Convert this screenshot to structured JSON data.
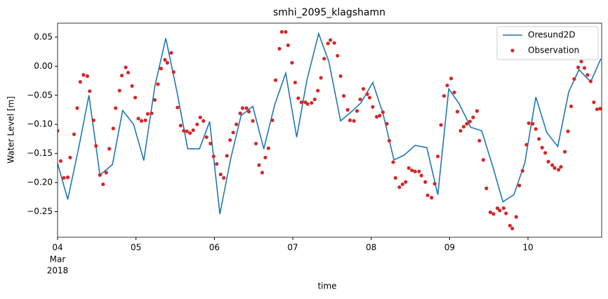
{
  "chart_data": {
    "type": "line",
    "title": "smhi_2095_klagshamn",
    "xlabel": "time",
    "ylabel": "Water Level [m]",
    "xlim": [
      0,
      6.94
    ],
    "ylim": [
      -0.294,
      0.074
    ],
    "xticks": [
      {
        "value": 0,
        "label": "04"
      },
      {
        "value": 1,
        "label": "05"
      },
      {
        "value": 2,
        "label": "06"
      },
      {
        "value": 3,
        "label": "07"
      },
      {
        "value": 4,
        "label": "08"
      },
      {
        "value": 5,
        "label": "09"
      },
      {
        "value": 6,
        "label": "10"
      }
    ],
    "xtick_sublabels": [
      "Mar",
      "2018"
    ],
    "yticks": [
      0.05,
      {
        "value": 0,
        "label": "0.00"
      },
      {
        "value": -0.05,
        "label": "−0.05"
      },
      {
        "value": -0.1,
        "label": "−0.10"
      },
      {
        "value": -0.15,
        "label": "−0.15"
      },
      {
        "value": -0.2,
        "label": "−0.20"
      },
      {
        "value": -0.25,
        "label": "−0.25"
      }
    ],
    "legend": "upper right",
    "series": [
      {
        "name": "Oresund2D",
        "color": "#1f77b4",
        "type": "line",
        "x": [
          0,
          0.13,
          0.27,
          0.4,
          0.54,
          0.7,
          0.83,
          0.97,
          1.1,
          1.24,
          1.38,
          1.52,
          1.66,
          1.81,
          1.94,
          2.07,
          2.21,
          2.34,
          2.49,
          2.63,
          2.77,
          2.91,
          3.05,
          3.18,
          3.33,
          3.46,
          3.61,
          3.75,
          3.87,
          4.02,
          4.15,
          4.29,
          4.42,
          4.56,
          4.71,
          4.85,
          4.99,
          5.12,
          5.27,
          5.41,
          5.55,
          5.68,
          5.82,
          5.96,
          6.1,
          6.24,
          6.38,
          6.52,
          6.65,
          6.8,
          6.93
        ],
        "values": [
          -0.167,
          -0.229,
          -0.14,
          -0.05,
          -0.187,
          -0.169,
          -0.076,
          -0.1,
          -0.162,
          -0.035,
          0.048,
          -0.042,
          -0.142,
          -0.142,
          -0.095,
          -0.254,
          -0.158,
          -0.085,
          -0.069,
          -0.142,
          -0.066,
          -0.012,
          -0.122,
          -0.024,
          0.056,
          0.008,
          -0.094,
          -0.078,
          -0.063,
          -0.028,
          -0.081,
          -0.161,
          -0.153,
          -0.136,
          -0.14,
          -0.221,
          -0.039,
          -0.064,
          -0.105,
          -0.111,
          -0.172,
          -0.233,
          -0.221,
          -0.166,
          -0.053,
          -0.114,
          -0.138,
          -0.044,
          -0.006,
          -0.027,
          0.013
        ]
      },
      {
        "name": "Observation",
        "color": "#d62728",
        "type": "scatter",
        "x": [
          0,
          0.04,
          0.08,
          0.13,
          0.16,
          0.21,
          0.25,
          0.29,
          0.33,
          0.38,
          0.41,
          0.46,
          0.49,
          0.54,
          0.58,
          0.62,
          0.66,
          0.71,
          0.74,
          0.79,
          0.82,
          0.87,
          0.9,
          0.95,
          0.99,
          1.03,
          1.07,
          1.12,
          1.15,
          1.2,
          1.24,
          1.28,
          1.32,
          1.37,
          1.4,
          1.45,
          1.48,
          1.53,
          1.57,
          1.61,
          1.65,
          1.69,
          1.73,
          1.78,
          1.82,
          1.86,
          1.9,
          1.95,
          1.99,
          2.03,
          2.08,
          2.12,
          2.16,
          2.2,
          2.24,
          2.28,
          2.33,
          2.36,
          2.41,
          2.44,
          2.49,
          2.53,
          2.57,
          2.61,
          2.65,
          2.69,
          2.74,
          2.78,
          2.83,
          2.86,
          2.91,
          2.94,
          2.99,
          3.03,
          3.07,
          3.11,
          3.16,
          3.19,
          3.24,
          3.28,
          3.32,
          3.36,
          3.4,
          3.45,
          3.48,
          3.53,
          3.57,
          3.61,
          3.65,
          3.7,
          3.73,
          3.78,
          3.82,
          3.86,
          3.9,
          3.95,
          3.98,
          4.02,
          4.07,
          4.11,
          4.15,
          4.2,
          4.23,
          4.28,
          4.31,
          4.36,
          4.4,
          4.44,
          4.48,
          4.52,
          4.56,
          4.61,
          4.64,
          4.69,
          4.72,
          4.77,
          4.81,
          4.85,
          4.89,
          4.93,
          4.97,
          5.02,
          5.06,
          5.1,
          5.14,
          5.18,
          5.22,
          5.26,
          5.3,
          5.35,
          5.38,
          5.43,
          5.47,
          5.52,
          5.56,
          5.61,
          5.64,
          5.69,
          5.72,
          5.77,
          5.8,
          5.85,
          5.89,
          5.93,
          5.98,
          6.01,
          6.06,
          6.1,
          6.14,
          6.18,
          6.22,
          6.26,
          6.31,
          6.34,
          6.39,
          6.42,
          6.47,
          6.51,
          6.55,
          6.59,
          6.64,
          6.68,
          6.72,
          6.76,
          6.8,
          6.84,
          6.88,
          6.92
        ],
        "values": [
          -0.111,
          -0.163,
          -0.192,
          -0.191,
          -0.157,
          -0.117,
          -0.072,
          -0.027,
          -0.015,
          -0.017,
          -0.043,
          -0.093,
          -0.137,
          -0.187,
          -0.203,
          -0.183,
          -0.142,
          -0.107,
          -0.072,
          -0.042,
          -0.016,
          -0.002,
          -0.011,
          -0.034,
          -0.054,
          -0.09,
          -0.094,
          -0.093,
          -0.082,
          -0.081,
          -0.058,
          -0.031,
          -0.004,
          0.011,
          0.006,
          0.023,
          -0.01,
          -0.071,
          -0.102,
          -0.111,
          -0.112,
          -0.115,
          -0.11,
          -0.1,
          -0.088,
          -0.094,
          -0.122,
          -0.133,
          -0.155,
          -0.168,
          -0.186,
          -0.192,
          -0.154,
          -0.127,
          -0.114,
          -0.1,
          -0.081,
          -0.072,
          -0.072,
          -0.078,
          -0.094,
          -0.133,
          -0.17,
          -0.183,
          -0.157,
          -0.141,
          -0.093,
          -0.024,
          0.03,
          0.059,
          0.059,
          0.036,
          0.006,
          -0.028,
          -0.055,
          -0.062,
          -0.062,
          -0.065,
          -0.063,
          -0.057,
          -0.042,
          -0.02,
          0.013,
          0.039,
          0.045,
          0.04,
          0.018,
          -0.017,
          -0.051,
          -0.075,
          -0.093,
          -0.094,
          -0.077,
          -0.057,
          -0.039,
          -0.048,
          -0.054,
          -0.07,
          -0.087,
          -0.085,
          -0.079,
          -0.099,
          -0.128,
          -0.165,
          -0.192,
          -0.208,
          -0.203,
          -0.199,
          -0.175,
          -0.179,
          -0.181,
          -0.181,
          -0.188,
          -0.199,
          -0.222,
          -0.226,
          -0.202,
          -0.155,
          -0.101,
          -0.051,
          -0.033,
          -0.021,
          -0.045,
          -0.078,
          -0.111,
          -0.104,
          -0.099,
          -0.095,
          -0.088,
          -0.077,
          -0.128,
          -0.161,
          -0.21,
          -0.251,
          -0.254,
          -0.244,
          -0.248,
          -0.244,
          -0.253,
          -0.274,
          -0.279,
          -0.259,
          -0.205,
          -0.18,
          -0.135,
          -0.098,
          -0.099,
          -0.108,
          -0.125,
          -0.14,
          -0.149,
          -0.164,
          -0.17,
          -0.175,
          -0.178,
          -0.173,
          -0.147,
          -0.112,
          -0.069,
          -0.022,
          -0.002,
          0.008,
          -0.003,
          -0.015,
          -0.026,
          -0.062,
          -0.074,
          -0.073
        ]
      }
    ]
  }
}
